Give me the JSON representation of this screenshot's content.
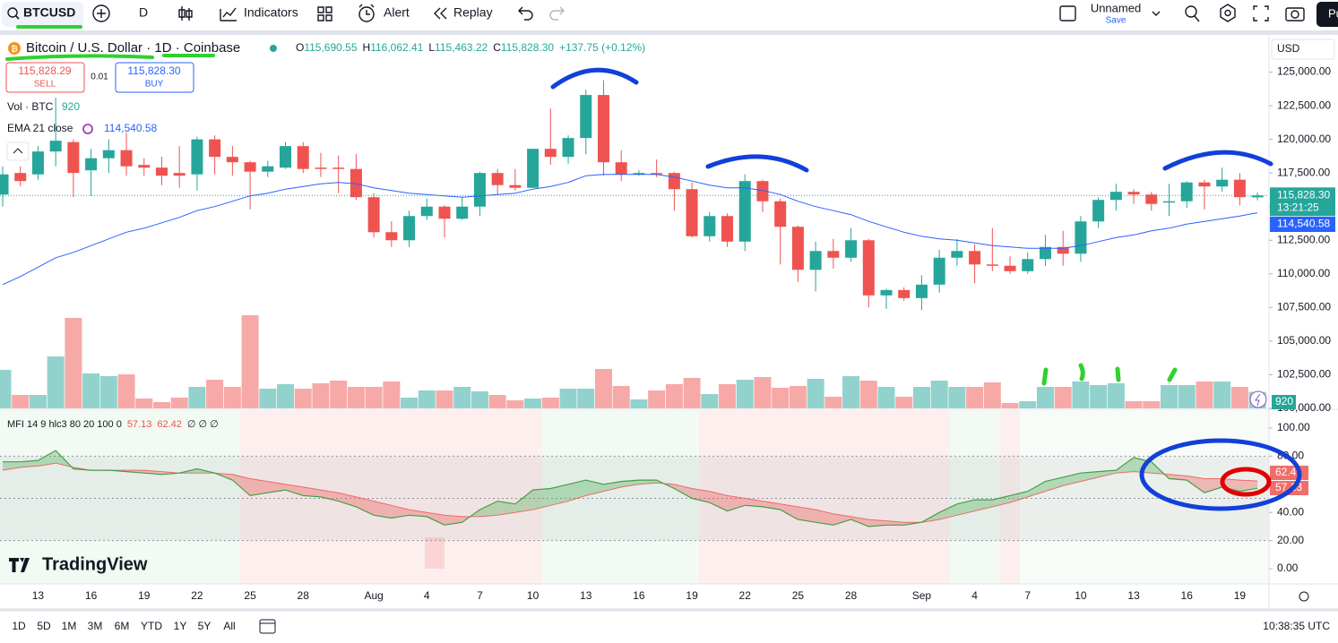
{
  "toolbar": {
    "symbol": "BTCUSD",
    "interval": "D",
    "indicators": "Indicators",
    "alert": "Alert",
    "replay": "Replay",
    "layout_name": "Unnamed",
    "save": "Save",
    "publish": "Pu"
  },
  "chart_data": {
    "type": "candlestick",
    "title": "Bitcoin / U.S. Dollar · 1D · Coinbase",
    "ohlc_legend": [
      {
        "key": "O",
        "value": "115,690.55"
      },
      {
        "key": "H",
        "value": "116,062.41"
      },
      {
        "key": "L",
        "value": "115,463.22"
      },
      {
        "key": "C",
        "value": "115,828.30"
      }
    ],
    "change": "+137.75 (+0.12%)",
    "trade": {
      "sell_price": "115,828.29",
      "sell": "SELL",
      "spread": "0.01",
      "buy_price": "115,828.30",
      "buy": "BUY"
    },
    "categories": [
      null,
      null,
      "13",
      null,
      null,
      "16",
      null,
      null,
      "19",
      null,
      null,
      "22",
      null,
      null,
      "25",
      null,
      null,
      "28",
      null,
      null,
      null,
      "Aug",
      null,
      null,
      "4",
      null,
      null,
      "7",
      null,
      null,
      "10",
      null,
      null,
      "13",
      null,
      null,
      "16",
      null,
      null,
      "19",
      null,
      null,
      "22",
      null,
      null,
      "25",
      null,
      null,
      "28",
      null,
      null,
      null,
      "Sep",
      null,
      null,
      "4",
      null,
      null,
      "7",
      null,
      null,
      "10",
      null,
      null,
      "13",
      null,
      null,
      "16",
      null,
      null,
      "19",
      null
    ],
    "open": [
      115900,
      117500,
      117400,
      119100,
      119800,
      117700,
      118600,
      119200,
      118100,
      117900,
      117500,
      117400,
      120000,
      118700,
      118300,
      117600,
      117900,
      119500,
      117900,
      117900,
      117800,
      115700,
      113100,
      112500,
      114300,
      115000,
      114100,
      115000,
      117500,
      116600,
      116400,
      119300,
      118700,
      120100,
      123300,
      118300,
      117400,
      117500,
      117500,
      116300,
      112800,
      114300,
      112400,
      116900,
      115400,
      113500,
      110300,
      111700,
      111200,
      112500,
      108400,
      108800,
      108200,
      109200,
      111200,
      111700,
      110700,
      110600,
      110200,
      111100,
      112000,
      111500,
      113900,
      115500,
      116100,
      115900,
      115300,
      115400,
      116800,
      116500,
      117000,
      115690.55
    ],
    "high": [
      118000,
      118000,
      119500,
      123100,
      120000,
      119300,
      120000,
      120500,
      118600,
      118700,
      119500,
      120200,
      120300,
      119500,
      118400,
      118400,
      119800,
      119800,
      119000,
      118800,
      118900,
      116000,
      113900,
      114700,
      115600,
      115100,
      115700,
      117600,
      117800,
      117800,
      119300,
      122300,
      120300,
      123700,
      124400,
      119200,
      117700,
      118500,
      117600,
      116800,
      114600,
      114500,
      117400,
      117000,
      115600,
      113600,
      112400,
      112600,
      113400,
      112600,
      108900,
      109000,
      109900,
      111800,
      112600,
      112200,
      113400,
      111300,
      111600,
      112900,
      113200,
      114300,
      115700,
      116700,
      116300,
      116100,
      116700,
      116900,
      117000,
      117900,
      117500,
      116062.41
    ],
    "low": [
      115000,
      116500,
      117000,
      118000,
      115700,
      115800,
      117500,
      117300,
      117300,
      116600,
      116400,
      116200,
      117400,
      117300,
      114800,
      117200,
      117800,
      117500,
      117200,
      116000,
      115500,
      112700,
      112000,
      112000,
      114000,
      112700,
      114000,
      114300,
      115900,
      116200,
      116400,
      118100,
      118200,
      118900,
      117300,
      116900,
      117300,
      117200,
      114700,
      112700,
      112400,
      112000,
      111700,
      114600,
      110700,
      109400,
      108700,
      110400,
      110900,
      107500,
      107400,
      108000,
      107300,
      108600,
      110600,
      109300,
      110200,
      110000,
      110000,
      110600,
      110600,
      110900,
      113400,
      114700,
      115200,
      114700,
      114300,
      114900,
      114800,
      116100,
      115100,
      115463.22
    ],
    "close": [
      117400,
      116900,
      119100,
      119900,
      117500,
      118600,
      119200,
      118000,
      117900,
      117300,
      117300,
      120000,
      118700,
      118300,
      117600,
      118000,
      119500,
      117800,
      117800,
      117800,
      115700,
      113100,
      112500,
      114300,
      115000,
      114100,
      115000,
      117500,
      116600,
      116400,
      119300,
      118700,
      120100,
      123300,
      118300,
      117400,
      117500,
      117400,
      116300,
      112800,
      114300,
      112400,
      116900,
      115400,
      113500,
      110300,
      111700,
      111200,
      112500,
      108400,
      108800,
      108200,
      109200,
      111200,
      111700,
      110700,
      110600,
      110200,
      111100,
      112000,
      111500,
      113900,
      115500,
      116100,
      115900,
      115200,
      115400,
      116800,
      116500,
      117000,
      115700,
      115828.3
    ],
    "up_color": "#26a69a",
    "down_color": "#ef5350",
    "ylim": [
      100000,
      127700
    ],
    "yticks": [
      {
        "value": 125000,
        "label": "125,000.00"
      },
      {
        "value": 122500,
        "label": "122,500.00"
      },
      {
        "value": 120000,
        "label": "120,000.00"
      },
      {
        "value": 117500,
        "label": "117,500.00"
      },
      {
        "value": 115000,
        "label": "115,000.00"
      },
      {
        "value": 112500,
        "label": "112,500.00"
      },
      {
        "value": 110000,
        "label": "110,000.00"
      },
      {
        "value": 107500,
        "label": "107,500.00"
      },
      {
        "value": 105000,
        "label": "105,000.00"
      },
      {
        "value": 102500,
        "label": "102,500.00"
      },
      {
        "value": 100000,
        "label": "100,000.00"
      }
    ],
    "currency": "USD",
    "last_price_label": "115,828.30",
    "countdown": "13:21:25",
    "volume": {
      "name": "Vol · BTC",
      "last_label": "920",
      "ylim": [
        0,
        20000
      ],
      "values": [
        2150,
        750,
        750,
        2900,
        5050,
        1950,
        1800,
        1900,
        550,
        350,
        600,
        1200,
        1600,
        1200,
        5200,
        1100,
        1350,
        1100,
        1400,
        1550,
        1200,
        1200,
        1500,
        600,
        1000,
        1000,
        1200,
        950,
        750,
        450,
        550,
        600,
        1100,
        1100,
        2200,
        1250,
        500,
        1000,
        1350,
        1700,
        800,
        1350,
        1600,
        1750,
        1150,
        1250,
        1650,
        650,
        1800,
        1550,
        1200,
        650,
        1200,
        1550,
        1200,
        1200,
        1450,
        300,
        400,
        1200,
        1200,
        1500,
        1300,
        1400,
        400,
        400,
        1300,
        1300,
        1500,
        1500,
        1200,
        920
      ]
    },
    "ema": {
      "name": "EMA 21 close",
      "last_label": "114,540.58",
      "color": "#2962ff",
      "values": [
        109200,
        109800,
        110500,
        111200,
        111600,
        112100,
        112600,
        113100,
        113400,
        113800,
        114200,
        114700,
        115000,
        115400,
        115800,
        116000,
        116300,
        116500,
        116700,
        116800,
        116700,
        116400,
        116200,
        116000,
        115900,
        115800,
        115700,
        115800,
        115900,
        116000,
        116300,
        116500,
        116800,
        117300,
        117400,
        117400,
        117400,
        117400,
        117200,
        116900,
        116600,
        116400,
        116400,
        116200,
        115900,
        115400,
        115000,
        114700,
        114400,
        113900,
        113500,
        113100,
        112800,
        112600,
        112500,
        112300,
        112100,
        112000,
        111900,
        111900,
        111900,
        112100,
        112400,
        112700,
        112900,
        113200,
        113400,
        113700,
        113900,
        114100,
        114300,
        114540.58
      ]
    },
    "mfi": {
      "name": "MFI 14 9 hlc3 80 20 100 0",
      "mfi_label": "57.13",
      "ma_label": "62.42",
      "extra": "∅ ∅ ∅",
      "color": "#43a047",
      "ma_color": "#ef5350",
      "ylim": [
        -10.8,
        112.7
      ],
      "yticks": [
        {
          "value": 100,
          "label": "100.00"
        },
        {
          "value": 80,
          "label": "80.00"
        },
        {
          "value": 40,
          "label": "40.00"
        },
        {
          "value": 20,
          "label": "20.00"
        },
        {
          "value": 0,
          "label": "0.00"
        }
      ],
      "bands": [
        80,
        50,
        20
      ],
      "axis_labels": [
        "62.4",
        "57.13"
      ],
      "values": [
        76,
        76,
        77,
        84,
        71,
        70,
        70,
        69,
        68,
        67,
        68,
        71,
        68,
        63,
        52,
        54,
        56,
        52,
        51,
        48,
        44,
        38,
        36,
        38,
        37,
        31,
        33,
        42,
        48,
        46,
        56,
        57,
        60,
        63,
        60,
        62,
        63,
        63,
        57,
        50,
        47,
        41,
        45,
        44,
        42,
        35,
        33,
        31,
        35,
        30,
        31,
        31,
        33,
        40,
        46,
        49,
        49,
        52,
        55,
        62,
        65,
        68,
        69,
        70,
        79,
        76,
        64,
        63,
        54,
        58,
        55,
        57.13
      ],
      "ma_values": [
        70,
        72,
        73,
        75,
        72,
        70,
        70,
        70,
        70,
        69,
        68,
        68,
        68,
        67,
        64,
        62,
        60,
        58,
        56,
        54,
        51,
        48,
        45,
        42,
        40,
        38,
        37,
        37,
        38,
        40,
        42,
        45,
        48,
        52,
        55,
        58,
        60,
        61,
        60,
        57,
        55,
        52,
        50,
        48,
        46,
        44,
        42,
        39,
        37,
        35,
        34,
        33,
        33,
        35,
        38,
        41,
        44,
        47,
        51,
        55,
        59,
        62,
        65,
        68,
        69,
        68,
        67,
        66,
        64,
        64,
        63,
        62.42
      ]
    }
  },
  "bottom_bar": {
    "ranges": [
      "1D",
      "5D",
      "1M",
      "3M",
      "6M",
      "YTD",
      "1Y",
      "5Y",
      "All"
    ],
    "clock": "10:38:35 UTC"
  },
  "logo": "TradingView"
}
